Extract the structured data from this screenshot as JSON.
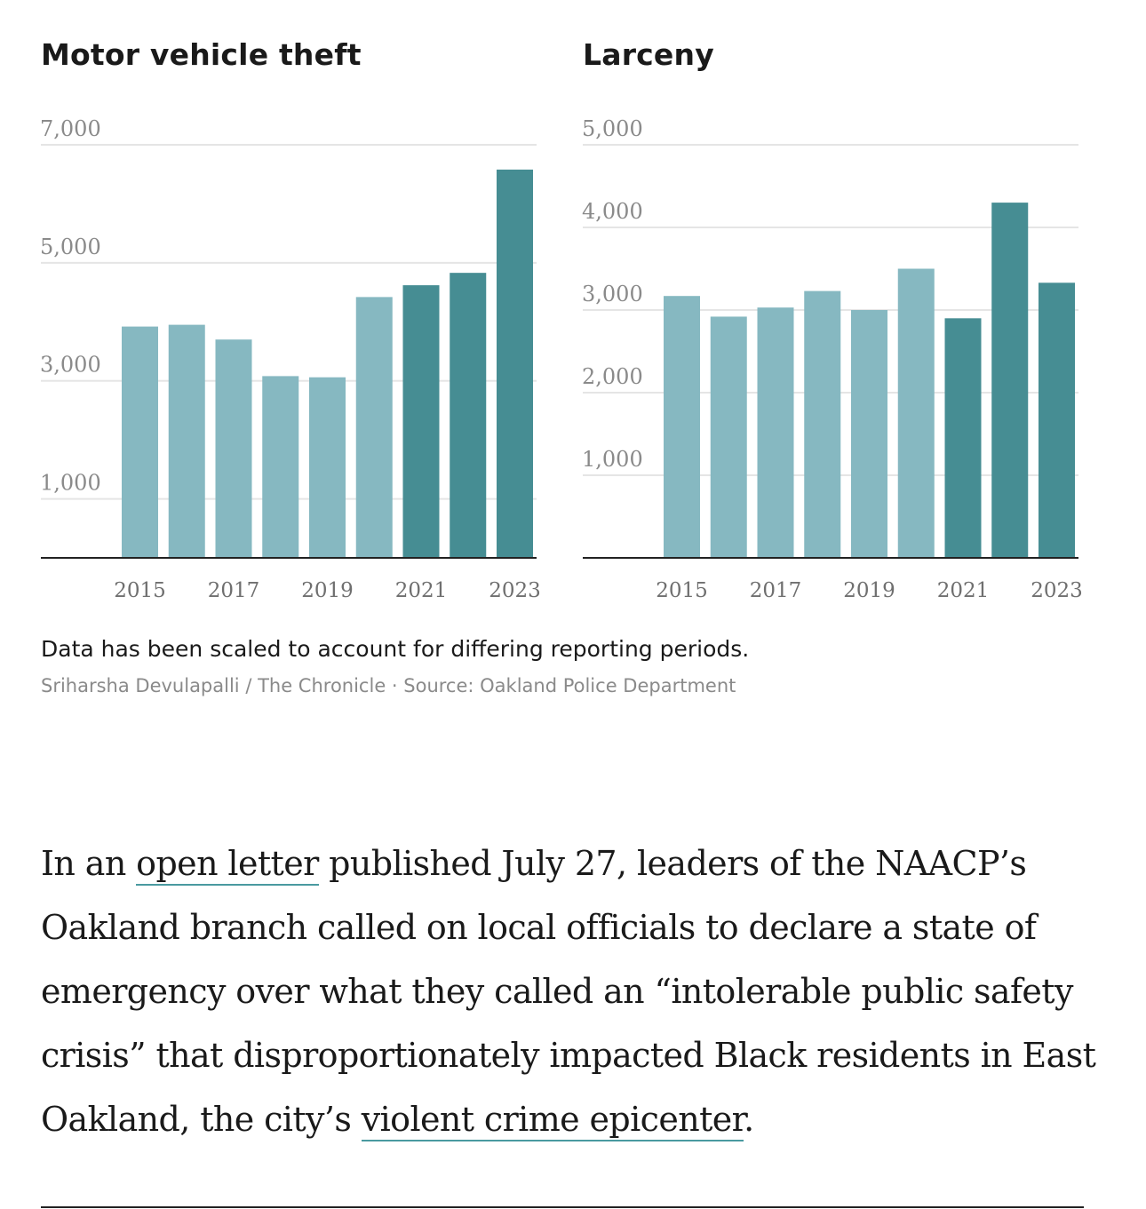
{
  "colors": {
    "light_bar": "#86b8c1",
    "dark_bar": "#468d93",
    "grid": "#e5e5e5",
    "axis": "#222222",
    "link_underline": "#4a9aa0"
  },
  "chart_data": [
    {
      "type": "bar",
      "title": "Motor vehicle theft",
      "x": [
        2015,
        2016,
        2017,
        2018,
        2019,
        2020,
        2021,
        2022,
        2023
      ],
      "values": [
        3920,
        3950,
        3700,
        3080,
        3060,
        4420,
        4620,
        4830,
        6580
      ],
      "highlight_from_index": 6,
      "ylim": [
        0,
        7000
      ],
      "yticks": [
        1000,
        3000,
        5000,
        7000
      ],
      "ytick_labels": [
        "1,000",
        "3,000",
        "5,000",
        "7,000"
      ],
      "xtick_labels": [
        "2015",
        "2017",
        "2019",
        "2021",
        "2023"
      ],
      "grid": true
    },
    {
      "type": "bar",
      "title": "Larceny",
      "x": [
        2015,
        2016,
        2017,
        2018,
        2019,
        2020,
        2021,
        2022,
        2023
      ],
      "values": [
        3170,
        2920,
        3030,
        3230,
        3000,
        3500,
        2900,
        4300,
        3330
      ],
      "highlight_from_index": 6,
      "ylim": [
        0,
        5000
      ],
      "yticks": [
        1000,
        2000,
        3000,
        4000,
        5000
      ],
      "ytick_labels": [
        "1,000",
        "2,000",
        "3,000",
        "4,000",
        "5,000"
      ],
      "xtick_labels": [
        "2015",
        "2017",
        "2019",
        "2021",
        "2023"
      ],
      "grid": true
    }
  ],
  "note": "Data has been scaled to account for differing reporting periods.",
  "credit": "Sriharsha Devulapalli / The Chronicle · Source: Oakland Police Department",
  "article": {
    "p1": "In an ",
    "link1": "open letter",
    "p2": " published July 27, leaders of the NAACP’s Oakland branch called on local officials to declare a state of emergency over what they called an “intolerable public safety crisis” that disproportionately impacted Black residents in East Oakland, the city’s ",
    "link2": "violent crime epicenter",
    "p3": "."
  }
}
